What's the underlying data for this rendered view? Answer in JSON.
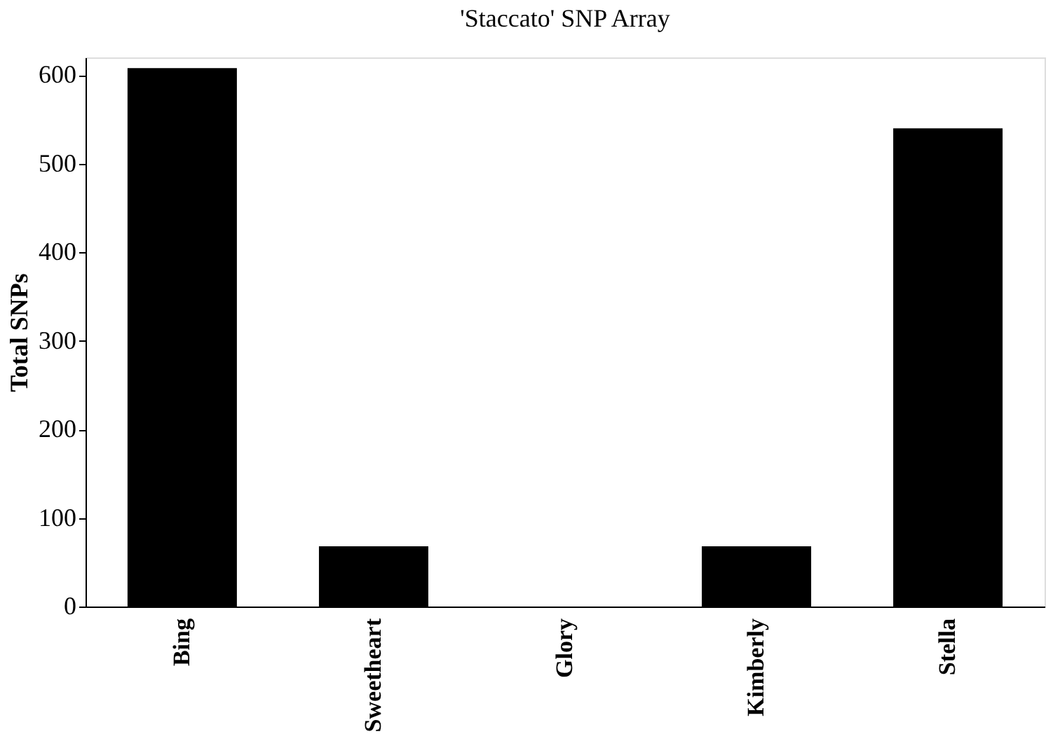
{
  "chart_data": {
    "type": "bar",
    "title": "'Staccato'  SNP Array",
    "ylabel": "Total SNPs",
    "categories": [
      "Bing",
      "Sweetheart",
      "Glory",
      "Kimberly",
      "Stella"
    ],
    "values": [
      608,
      68,
      0,
      68,
      540
    ],
    "color": "#000000",
    "ylim": [
      0,
      620
    ],
    "yticks": [
      0,
      100,
      200,
      300,
      400,
      500,
      600
    ],
    "grid": false
  }
}
